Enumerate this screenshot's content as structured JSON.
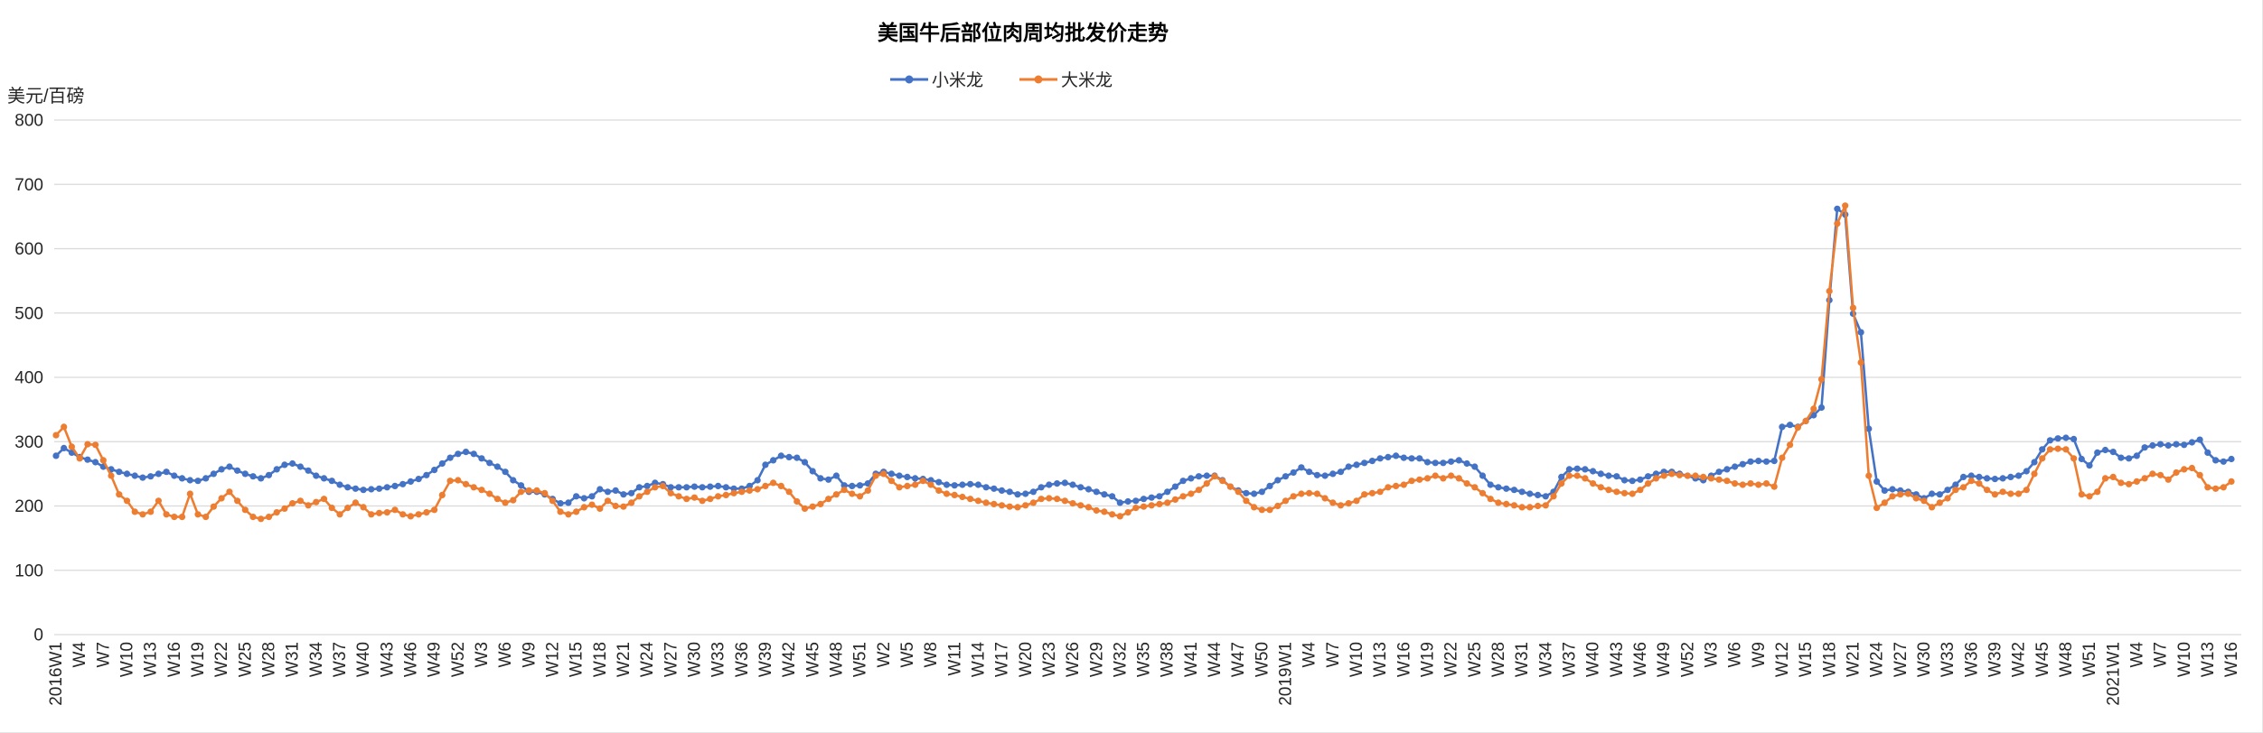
{
  "chart_data": {
    "type": "line",
    "title": "美国牛后部位肉周均批发价走势",
    "unit_label": "美元/百磅",
    "grid": true,
    "legend_position": "top-center",
    "colors": {
      "gridline": "#D9D9D9",
      "tick_text": "#262626",
      "title_text": "#000000",
      "series_xiaomilong": "#4472C4",
      "series_damilong": "#ED7D31"
    },
    "y_axis": {
      "min": 0,
      "max": 800,
      "step": 100
    },
    "x_axis": {
      "label_every": 3,
      "total_points": 277,
      "tick_labels": [
        "2016W1",
        "W4",
        "W7",
        "W10",
        "W13",
        "W16",
        "W19",
        "W22",
        "W25",
        "W28",
        "W31",
        "W34",
        "W37",
        "W40",
        "W43",
        "W46",
        "W49",
        "W52",
        "W3",
        "W6",
        "W9",
        "W12",
        "W15",
        "W18",
        "W21",
        "W24",
        "W27",
        "W30",
        "W33",
        "W36",
        "W39",
        "W42",
        "W45",
        "W48",
        "W51",
        "W2",
        "W5",
        "W8",
        "W11",
        "W14",
        "W17",
        "W20",
        "W23",
        "W26",
        "W29",
        "W32",
        "W35",
        "W38",
        "W41",
        "W44",
        "W47",
        "W50",
        "2019W1",
        "W4",
        "W7",
        "W10",
        "W13",
        "W16",
        "W19",
        "W22",
        "W25",
        "W28",
        "W31",
        "W34",
        "W37",
        "W40",
        "W43",
        "W46",
        "W49",
        "W52",
        "W3",
        "W6",
        "W9",
        "W12",
        "W15",
        "W18",
        "W21",
        "W24",
        "W27",
        "W30",
        "W33",
        "W36",
        "W39",
        "W42",
        "W45",
        "W48",
        "W51",
        "2021W1",
        "W4",
        "W7",
        "W10",
        "W13",
        "W16"
      ]
    },
    "series": [
      {
        "name": "小米龙",
        "color": "#4472C4",
        "values": [
          278,
          290,
          283,
          276,
          272,
          268,
          261,
          257,
          253,
          250,
          247,
          244,
          246,
          250,
          253,
          247,
          243,
          240,
          239,
          243,
          250,
          257,
          261,
          255,
          250,
          246,
          243,
          248,
          257,
          264,
          266,
          261,
          255,
          247,
          243,
          239,
          233,
          229,
          227,
          225,
          226,
          227,
          229,
          231,
          234,
          238,
          242,
          248,
          256,
          266,
          275,
          281,
          284,
          281,
          274,
          267,
          261,
          253,
          240,
          232,
          222,
          222,
          218,
          211,
          204,
          205,
          215,
          212,
          215,
          226,
          222,
          224,
          218,
          220,
          229,
          231,
          236,
          234,
          229,
          229,
          229,
          230,
          229,
          230,
          231,
          229,
          227,
          227,
          231,
          240,
          264,
          271,
          278,
          276,
          275,
          268,
          254,
          243,
          241,
          247,
          232,
          231,
          232,
          235,
          250,
          253,
          250,
          247,
          245,
          243,
          242,
          240,
          237,
          233,
          232,
          233,
          234,
          233,
          229,
          227,
          224,
          222,
          218,
          219,
          222,
          229,
          233,
          235,
          236,
          233,
          229,
          226,
          222,
          218,
          215,
          205,
          207,
          208,
          211,
          213,
          215,
          222,
          230,
          239,
          243,
          246,
          247,
          247,
          240,
          230,
          224,
          220,
          219,
          222,
          231,
          240,
          246,
          252,
          260,
          253,
          248,
          247,
          250,
          253,
          261,
          264,
          267,
          270,
          274,
          276,
          278,
          275,
          274,
          274,
          268,
          267,
          267,
          269,
          271,
          266,
          261,
          247,
          233,
          229,
          227,
          225,
          222,
          219,
          217,
          215,
          222,
          245,
          257,
          258,
          257,
          254,
          250,
          247,
          246,
          240,
          239,
          241,
          246,
          250,
          253,
          253,
          250,
          247,
          243,
          240,
          247,
          253,
          257,
          261,
          265,
          269,
          270,
          269,
          270,
          323,
          326,
          323,
          332,
          341,
          353,
          520,
          662,
          653,
          499,
          470,
          320,
          238,
          224,
          226,
          224,
          222,
          218,
          212,
          219,
          218,
          225,
          233,
          245,
          247,
          245,
          243,
          242,
          243,
          245,
          247,
          254,
          268,
          288,
          302,
          305,
          306,
          304,
          273,
          263,
          283,
          287,
          284,
          275,
          274,
          278,
          291,
          294,
          296,
          294,
          296,
          295,
          299,
          303,
          283,
          271,
          269,
          273
        ]
      },
      {
        "name": "大米龙",
        "color": "#ED7D31",
        "values": [
          310,
          323,
          292,
          274,
          296,
          295,
          271,
          247,
          218,
          208,
          191,
          187,
          191,
          208,
          187,
          183,
          183,
          219,
          187,
          183,
          199,
          212,
          222,
          208,
          194,
          183,
          180,
          183,
          190,
          196,
          204,
          208,
          201,
          206,
          211,
          197,
          187,
          197,
          205,
          198,
          187,
          189,
          190,
          194,
          187,
          184,
          187,
          190,
          194,
          217,
          239,
          240,
          234,
          229,
          225,
          219,
          211,
          205,
          209,
          222,
          224,
          224,
          220,
          208,
          191,
          187,
          191,
          198,
          202,
          196,
          208,
          200,
          199,
          205,
          215,
          222,
          229,
          231,
          220,
          215,
          211,
          213,
          208,
          211,
          215,
          217,
          220,
          222,
          224,
          226,
          231,
          236,
          231,
          222,
          207,
          196,
          199,
          203,
          211,
          218,
          225,
          219,
          215,
          224,
          247,
          250,
          239,
          229,
          231,
          233,
          239,
          233,
          224,
          219,
          217,
          214,
          211,
          208,
          205,
          203,
          201,
          199,
          198,
          201,
          205,
          211,
          212,
          211,
          208,
          204,
          201,
          198,
          193,
          191,
          187,
          184,
          190,
          197,
          199,
          201,
          203,
          205,
          210,
          215,
          219,
          225,
          235,
          246,
          239,
          230,
          222,
          208,
          198,
          194,
          194,
          200,
          208,
          215,
          219,
          220,
          219,
          212,
          205,
          201,
          204,
          208,
          218,
          220,
          222,
          229,
          231,
          233,
          239,
          241,
          243,
          247,
          243,
          247,
          243,
          235,
          229,
          220,
          211,
          205,
          203,
          201,
          198,
          198,
          200,
          201,
          215,
          235,
          247,
          247,
          243,
          235,
          229,
          225,
          222,
          220,
          219,
          225,
          235,
          243,
          247,
          250,
          248,
          247,
          247,
          245,
          243,
          241,
          239,
          235,
          233,
          235,
          233,
          235,
          230,
          275,
          295,
          322,
          332,
          351,
          397,
          534,
          639,
          667,
          508,
          423,
          247,
          197,
          205,
          215,
          218,
          219,
          212,
          208,
          198,
          205,
          212,
          225,
          229,
          239,
          235,
          225,
          218,
          222,
          219,
          219,
          225,
          250,
          274,
          288,
          289,
          288,
          274,
          218,
          215,
          222,
          243,
          245,
          236,
          234,
          238,
          243,
          250,
          248,
          241,
          252,
          257,
          259,
          248,
          229,
          227,
          229,
          238
        ]
      }
    ]
  }
}
